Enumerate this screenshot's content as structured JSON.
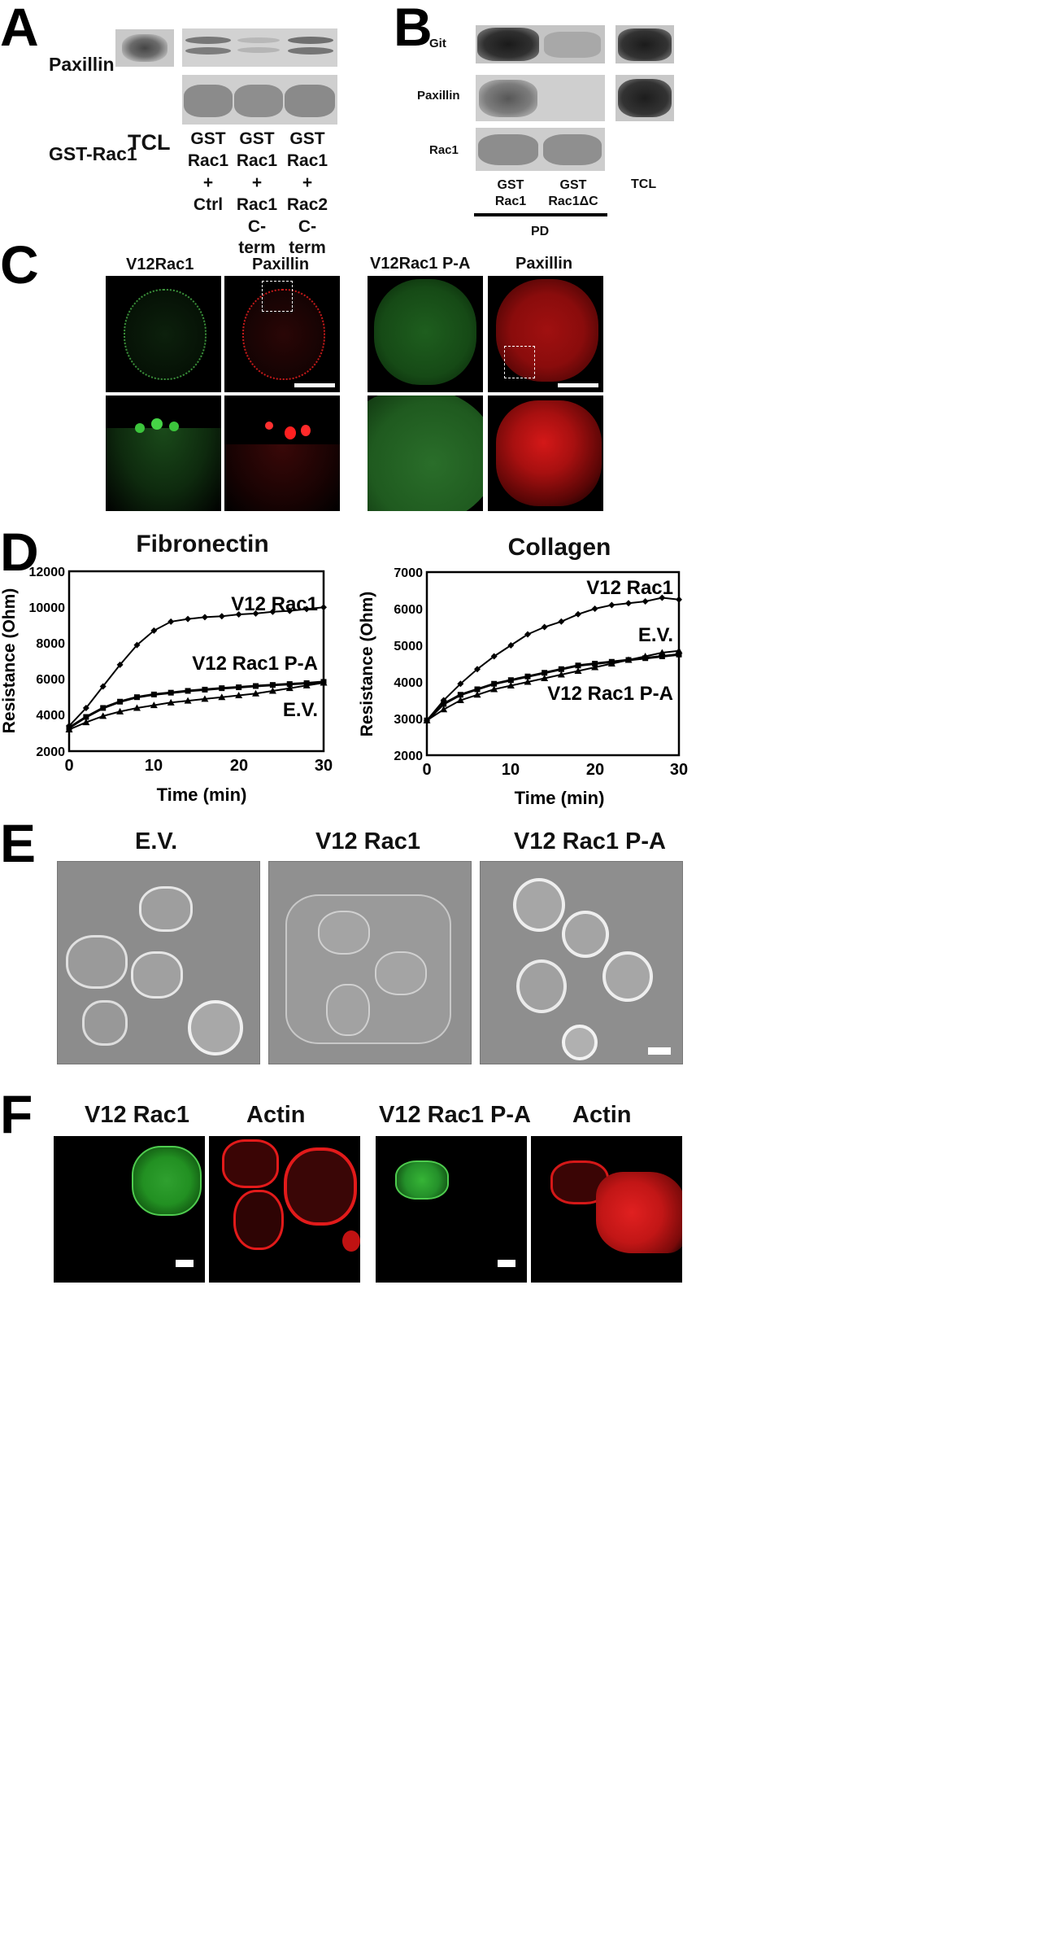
{
  "panels": {
    "A": {
      "letter": "A",
      "rows": [
        "Paxillin",
        "GST-Rac1"
      ],
      "tcl": "TCL",
      "lanes": [
        [
          "GST",
          "Rac1",
          "+",
          "Ctrl"
        ],
        [
          "GST",
          "Rac1",
          "+",
          "Rac1",
          "C-term"
        ],
        [
          "GST",
          "Rac1",
          "+",
          "Rac2",
          "C-term"
        ]
      ]
    },
    "B": {
      "letter": "B",
      "rows": [
        "Git",
        "Paxillin",
        "Rac1"
      ],
      "lanes": [
        [
          "GST",
          "Rac1"
        ],
        [
          "GST",
          "Rac1ΔC"
        ]
      ],
      "tcl": "TCL",
      "pd": "PD"
    },
    "C": {
      "letter": "C",
      "titles": [
        "V12Rac1",
        "Paxillin",
        "V12Rac1 P-A",
        "Paxillin"
      ]
    },
    "D": {
      "letter": "D",
      "charts": [
        {
          "title": "Fibronectin",
          "xlabel": "Time (min)",
          "ylabel": "Resistance (Ohm)",
          "yticks": [
            "12000",
            "10000",
            "8000",
            "6000",
            "4000",
            "2000"
          ],
          "xticks": [
            "0",
            "10",
            "20",
            "30"
          ],
          "series_labels": [
            "V12 Rac1",
            "V12 Rac1 P-A",
            "E.V."
          ]
        },
        {
          "title": "Collagen",
          "xlabel": "Time (min)",
          "ylabel": "Resistance (Ohm)",
          "yticks": [
            "7000",
            "6000",
            "5000",
            "4000",
            "3000",
            "2000"
          ],
          "xticks": [
            "0",
            "10",
            "20",
            "30"
          ],
          "series_labels": [
            "V12 Rac1",
            "E.V.",
            "V12 Rac1 P-A"
          ]
        }
      ]
    },
    "E": {
      "letter": "E",
      "titles": [
        "E.V.",
        "V12 Rac1",
        "V12 Rac1 P-A"
      ]
    },
    "F": {
      "letter": "F",
      "titles": [
        "V12 Rac1",
        "Actin",
        "V12 Rac1 P-A",
        "Actin"
      ]
    }
  },
  "chart_data": [
    {
      "type": "line",
      "title": "Fibronectin",
      "xlabel": "Time (min)",
      "ylabel": "Resistance (Ohm)",
      "xlim": [
        0,
        30
      ],
      "ylim": [
        2000,
        12000
      ],
      "x": [
        0,
        2,
        4,
        6,
        8,
        10,
        12,
        14,
        16,
        18,
        20,
        22,
        24,
        26,
        28,
        30
      ],
      "series": [
        {
          "name": "V12 Rac1",
          "marker": "diamond",
          "values": [
            3400,
            4400,
            5600,
            6800,
            7900,
            8700,
            9200,
            9350,
            9450,
            9500,
            9600,
            9650,
            9750,
            9800,
            9900,
            10000
          ]
        },
        {
          "name": "V12 Rac1 P-A",
          "marker": "square",
          "values": [
            3300,
            3900,
            4400,
            4750,
            5000,
            5150,
            5250,
            5350,
            5420,
            5500,
            5550,
            5620,
            5680,
            5730,
            5780,
            5850
          ]
        },
        {
          "name": "E.V.",
          "marker": "triangle",
          "values": [
            3200,
            3600,
            3950,
            4200,
            4400,
            4550,
            4700,
            4800,
            4900,
            5000,
            5100,
            5200,
            5350,
            5500,
            5650,
            5800
          ]
        }
      ]
    },
    {
      "type": "line",
      "title": "Collagen",
      "xlabel": "Time (min)",
      "ylabel": "Resistance (Ohm)",
      "xlim": [
        0,
        30
      ],
      "ylim": [
        2000,
        7000
      ],
      "x": [
        0,
        2,
        4,
        6,
        8,
        10,
        12,
        14,
        16,
        18,
        20,
        22,
        24,
        26,
        28,
        30
      ],
      "series": [
        {
          "name": "V12 Rac1",
          "marker": "diamond",
          "values": [
            2950,
            3500,
            3950,
            4350,
            4700,
            5000,
            5300,
            5500,
            5650,
            5850,
            6000,
            6100,
            6150,
            6200,
            6300,
            6250
          ]
        },
        {
          "name": "E.V.",
          "marker": "square",
          "values": [
            2950,
            3400,
            3650,
            3800,
            3950,
            4050,
            4150,
            4250,
            4350,
            4450,
            4500,
            4550,
            4600,
            4650,
            4700,
            4750
          ]
        },
        {
          "name": "V12 Rac1 P-A",
          "marker": "triangle",
          "values": [
            2950,
            3250,
            3500,
            3650,
            3800,
            3900,
            4000,
            4100,
            4200,
            4300,
            4400,
            4500,
            4600,
            4700,
            4800,
            4850
          ]
        }
      ]
    }
  ]
}
